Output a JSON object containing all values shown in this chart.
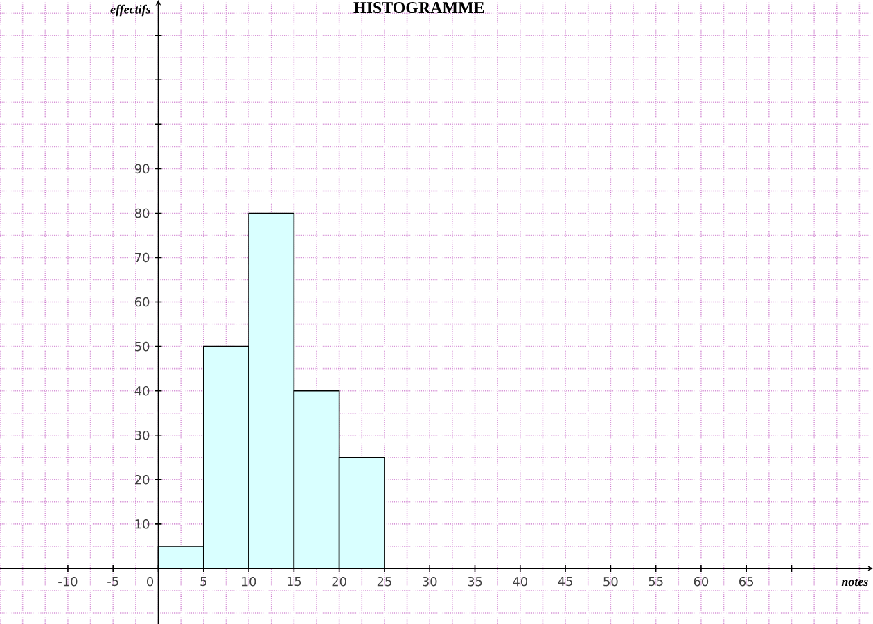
{
  "chart_data": {
    "type": "histogram",
    "title": "HISTOGRAMME",
    "xlabel": "notes",
    "ylabel": "effectifs",
    "bins": [
      0,
      5,
      10,
      15,
      20,
      25
    ],
    "values": [
      5,
      50,
      80,
      40,
      25
    ],
    "color": "#d9ffff",
    "xlim": [
      -17.5,
      79
    ],
    "ylim": [
      -12.5,
      128
    ],
    "xticks": [
      -10,
      -5,
      0,
      5,
      10,
      15,
      20,
      25,
      30,
      35,
      40,
      45,
      50,
      55,
      60,
      65,
      {
        "value": 70,
        "label": null
      }
    ],
    "yticks": [
      10,
      20,
      30,
      40,
      50,
      60,
      70,
      80,
      90,
      {
        "value": 100,
        "label": null
      },
      {
        "value": 110,
        "label": null
      },
      {
        "value": 120,
        "label": null
      }
    ],
    "grid": true
  }
}
